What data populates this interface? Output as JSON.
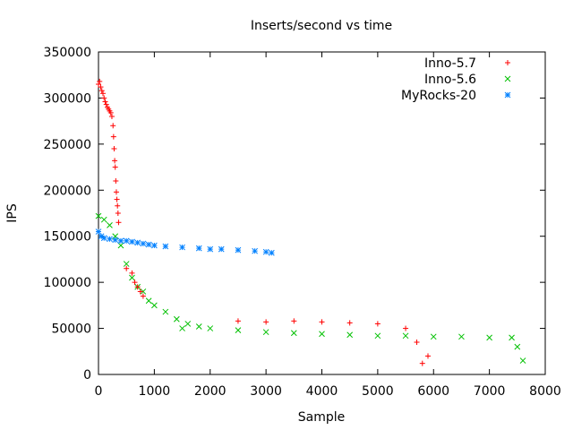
{
  "chart_data": {
    "type": "scatter",
    "title": "Inserts/second vs time",
    "xlabel": "Sample",
    "ylabel": "IPS",
    "xlim": [
      0,
      8000
    ],
    "ylim": [
      0,
      350000
    ],
    "x_ticks": [
      "0",
      "1000",
      "2000",
      "3000",
      "4000",
      "5000",
      "6000",
      "7000",
      "8000"
    ],
    "y_ticks": [
      "0",
      "50000",
      "100000",
      "150000",
      "200000",
      "250000",
      "300000",
      "350000"
    ],
    "grid": false,
    "legend_position": "top-right",
    "series": [
      {
        "name": "Inno-5.7",
        "marker": "+",
        "color": "#ff0000",
        "x": [
          0,
          20,
          40,
          60,
          80,
          100,
          120,
          140,
          160,
          180,
          200,
          220,
          240,
          260,
          270,
          280,
          290,
          300,
          310,
          320,
          330,
          340,
          350,
          360,
          500,
          600,
          650,
          700,
          750,
          800,
          2500,
          3000,
          3500,
          4000,
          4500,
          5000,
          5500,
          5700,
          5800,
          5900
        ],
        "y": [
          315000,
          318000,
          312000,
          308000,
          305000,
          300000,
          296000,
          293000,
          290000,
          288000,
          286000,
          284000,
          280000,
          270000,
          258000,
          245000,
          232000,
          225000,
          210000,
          198000,
          190000,
          183000,
          175000,
          165000,
          115000,
          110000,
          100000,
          95000,
          90000,
          85000,
          58000,
          57000,
          58000,
          57000,
          56000,
          55000,
          50000,
          35000,
          12000,
          20000
        ]
      },
      {
        "name": "Inno-5.6",
        "marker": "x",
        "color": "#00c000",
        "x": [
          0,
          100,
          200,
          300,
          400,
          500,
          600,
          700,
          800,
          900,
          1000,
          1200,
          1400,
          1500,
          1600,
          1800,
          2000,
          2500,
          3000,
          3500,
          4000,
          4500,
          5000,
          5500,
          6000,
          6500,
          7000,
          7400,
          7500,
          7600
        ],
        "y": [
          172000,
          168000,
          162000,
          150000,
          140000,
          120000,
          105000,
          95000,
          90000,
          80000,
          75000,
          68000,
          60000,
          50000,
          55000,
          52000,
          50000,
          48000,
          46000,
          45000,
          44000,
          43000,
          42000,
          42000,
          41000,
          41000,
          40000,
          40000,
          30000,
          15000
        ]
      },
      {
        "name": "MyRocks-20",
        "marker": "*",
        "color": "#0080ff",
        "x": [
          0,
          50,
          100,
          200,
          300,
          400,
          500,
          600,
          700,
          800,
          900,
          1000,
          1200,
          1500,
          1800,
          2000,
          2200,
          2500,
          2800,
          3000,
          3100
        ],
        "y": [
          155000,
          150000,
          148000,
          147000,
          146000,
          145000,
          145000,
          144000,
          143000,
          142000,
          141000,
          140000,
          139000,
          138000,
          137000,
          136000,
          136000,
          135000,
          134000,
          133000,
          132000
        ]
      }
    ]
  }
}
